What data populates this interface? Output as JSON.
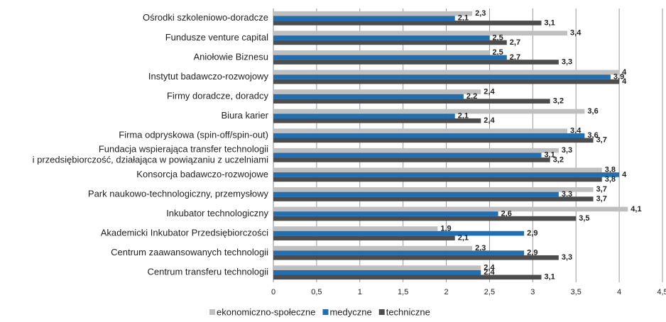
{
  "chart_data": {
    "type": "hbar",
    "categories": [
      "Ośrodki szkoleniowo-doradcze",
      "Fundusze venture capital",
      "Aniołowie Biznesu",
      "Instytut badawczo-rozwojowy",
      "Firmy doradcze, doradcy",
      "Biura karier",
      "Firma odpryskowa (spin-off/spin-out)",
      "Fundacja wspierająca transfer technologii\ni przedsiębiorczość, działająca w powiązaniu z uczelniami",
      "Konsorcja badawczo-rozwojowe",
      "Park naukowo-technologiczny, przemysłowy",
      "Inkubator technologiczny",
      "Akademicki Inkubator Przedsiębiorczości",
      "Centrum zaawansowanych technologii",
      "Centrum transferu technologii"
    ],
    "series": [
      {
        "name": "ekonomiczno-społeczne",
        "color": "#bfbfbf",
        "values": [
          2.3,
          3.4,
          2.5,
          4,
          2.4,
          3.6,
          3.4,
          3.3,
          3.8,
          3.7,
          4.1,
          1.9,
          2.3,
          2.4
        ],
        "value_labels": [
          "2,3",
          "3,4",
          "2,5",
          "4",
          "2,4",
          "3,6",
          "3,4",
          "3,3",
          "3,8",
          "3,7",
          "4,1",
          "1,9",
          "2,3",
          "2,4"
        ]
      },
      {
        "name": "medyczne",
        "color": "#1f6fb5",
        "values": [
          2.1,
          2.5,
          2.7,
          3.9,
          2.2,
          2.1,
          3.6,
          3.1,
          4,
          3.3,
          2.6,
          2.9,
          2.9,
          2.4
        ],
        "value_labels": [
          "2,1",
          "2,5",
          "2,7",
          "3,9",
          "2,2",
          "2,1",
          "3,6",
          "3,1",
          "4",
          "3,3",
          "2,6",
          "2,9",
          "2,9",
          "2,4"
        ]
      },
      {
        "name": "techniczne",
        "color": "#4d4d4d",
        "values": [
          3.1,
          2.7,
          3.3,
          4,
          3.2,
          2.4,
          3.7,
          3.2,
          3.8,
          3.7,
          3.5,
          2.1,
          3.3,
          3.1
        ],
        "value_labels": [
          "3,1",
          "2,7",
          "3,3",
          "4",
          "3,2",
          "2,4",
          "3,7",
          "3,2",
          "3,8",
          "3,7",
          "3,5",
          "2,1",
          "3,3",
          "3,1"
        ]
      }
    ],
    "xlim": [
      0,
      4.5
    ],
    "xticks": [
      0,
      {
        "value": 0.5,
        "label": "0,5"
      },
      1,
      {
        "value": 1.5,
        "label": "1,5"
      },
      2,
      {
        "value": 2.5,
        "label": "2,5"
      },
      3,
      {
        "value": 3.5,
        "label": "3,5"
      },
      4,
      {
        "value": 4.5,
        "label": "4,5"
      }
    ],
    "grid": true
  }
}
